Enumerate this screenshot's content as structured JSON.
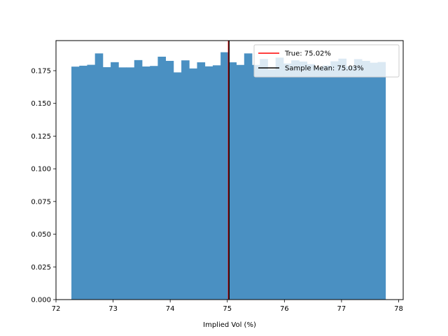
{
  "chart_data": {
    "type": "bar",
    "title": "",
    "xlabel": "Implied Vol (%)",
    "ylabel": "",
    "xlim": [
      72.0,
      78.08
    ],
    "ylim": [
      0.0,
      0.198
    ],
    "xticks": [
      72,
      73,
      74,
      75,
      76,
      77,
      78
    ],
    "xtick_labels": [
      "72",
      "73",
      "74",
      "75",
      "76",
      "77",
      "78"
    ],
    "yticks": [
      0.0,
      0.025,
      0.05,
      0.075,
      0.1,
      0.125,
      0.15,
      0.175
    ],
    "ytick_labels": [
      "0.000",
      "0.025",
      "0.050",
      "0.075",
      "0.100",
      "0.125",
      "0.150",
      "0.175"
    ],
    "grid": false,
    "legend_position": "top-right",
    "bar_color": "#4a90c2",
    "histogram": {
      "bin_start": 72.27,
      "bin_width": 0.1375,
      "values": [
        0.1781,
        0.1788,
        0.1795,
        0.1882,
        0.1777,
        0.1815,
        0.1775,
        0.1775,
        0.1831,
        0.1782,
        0.1786,
        0.1857,
        0.1825,
        0.1737,
        0.1829,
        0.1767,
        0.1814,
        0.1783,
        0.1791,
        0.1891,
        0.1814,
        0.1794,
        0.1882,
        0.1794,
        0.1839,
        0.176,
        0.185,
        0.1805,
        0.1829,
        0.182,
        0.18,
        0.1775,
        0.179,
        0.1822,
        0.1842,
        0.1784,
        0.1838,
        0.1825,
        0.1811,
        0.1816
      ]
    },
    "lines": [
      {
        "name": "True: 75.02%",
        "x": 75.02,
        "color": "#ff0000"
      },
      {
        "name": "Sample Mean: 75.03%",
        "x": 75.03,
        "color": "#000000"
      }
    ]
  }
}
